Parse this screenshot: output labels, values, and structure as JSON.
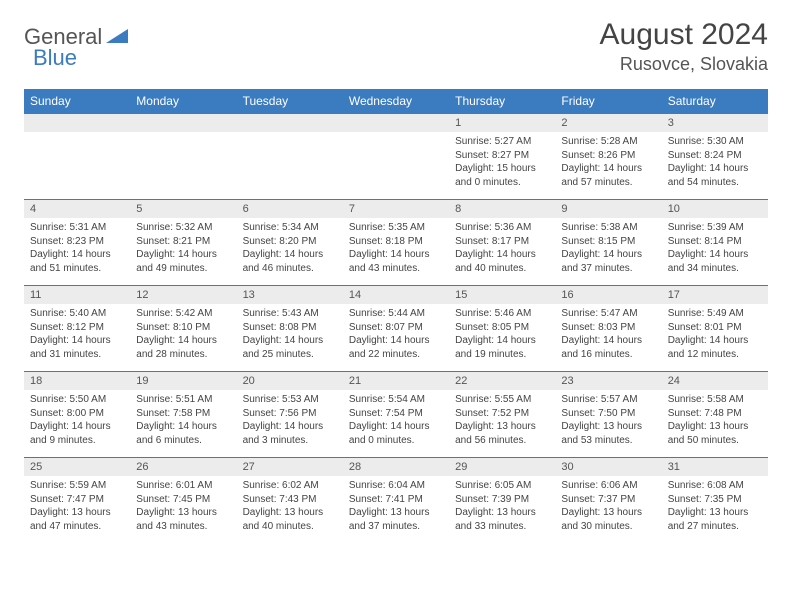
{
  "logo": {
    "general": "General",
    "blue": "Blue"
  },
  "title": "August 2024",
  "location": "Rusovce, Slovakia",
  "colors": {
    "header_bg": "#3b7bbf",
    "header_text": "#ffffff",
    "daynum_bg": "#ececec",
    "text": "#444444",
    "border": "#3b7bbf",
    "page_bg": "#ffffff"
  },
  "dayHeaders": [
    "Sunday",
    "Monday",
    "Tuesday",
    "Wednesday",
    "Thursday",
    "Friday",
    "Saturday"
  ],
  "weeks": [
    [
      null,
      null,
      null,
      null,
      {
        "n": "1",
        "sr": "5:27 AM",
        "ss": "8:27 PM",
        "dl": "15 hours and 0 minutes."
      },
      {
        "n": "2",
        "sr": "5:28 AM",
        "ss": "8:26 PM",
        "dl": "14 hours and 57 minutes."
      },
      {
        "n": "3",
        "sr": "5:30 AM",
        "ss": "8:24 PM",
        "dl": "14 hours and 54 minutes."
      }
    ],
    [
      {
        "n": "4",
        "sr": "5:31 AM",
        "ss": "8:23 PM",
        "dl": "14 hours and 51 minutes."
      },
      {
        "n": "5",
        "sr": "5:32 AM",
        "ss": "8:21 PM",
        "dl": "14 hours and 49 minutes."
      },
      {
        "n": "6",
        "sr": "5:34 AM",
        "ss": "8:20 PM",
        "dl": "14 hours and 46 minutes."
      },
      {
        "n": "7",
        "sr": "5:35 AM",
        "ss": "8:18 PM",
        "dl": "14 hours and 43 minutes."
      },
      {
        "n": "8",
        "sr": "5:36 AM",
        "ss": "8:17 PM",
        "dl": "14 hours and 40 minutes."
      },
      {
        "n": "9",
        "sr": "5:38 AM",
        "ss": "8:15 PM",
        "dl": "14 hours and 37 minutes."
      },
      {
        "n": "10",
        "sr": "5:39 AM",
        "ss": "8:14 PM",
        "dl": "14 hours and 34 minutes."
      }
    ],
    [
      {
        "n": "11",
        "sr": "5:40 AM",
        "ss": "8:12 PM",
        "dl": "14 hours and 31 minutes."
      },
      {
        "n": "12",
        "sr": "5:42 AM",
        "ss": "8:10 PM",
        "dl": "14 hours and 28 minutes."
      },
      {
        "n": "13",
        "sr": "5:43 AM",
        "ss": "8:08 PM",
        "dl": "14 hours and 25 minutes."
      },
      {
        "n": "14",
        "sr": "5:44 AM",
        "ss": "8:07 PM",
        "dl": "14 hours and 22 minutes."
      },
      {
        "n": "15",
        "sr": "5:46 AM",
        "ss": "8:05 PM",
        "dl": "14 hours and 19 minutes."
      },
      {
        "n": "16",
        "sr": "5:47 AM",
        "ss": "8:03 PM",
        "dl": "14 hours and 16 minutes."
      },
      {
        "n": "17",
        "sr": "5:49 AM",
        "ss": "8:01 PM",
        "dl": "14 hours and 12 minutes."
      }
    ],
    [
      {
        "n": "18",
        "sr": "5:50 AM",
        "ss": "8:00 PM",
        "dl": "14 hours and 9 minutes."
      },
      {
        "n": "19",
        "sr": "5:51 AM",
        "ss": "7:58 PM",
        "dl": "14 hours and 6 minutes."
      },
      {
        "n": "20",
        "sr": "5:53 AM",
        "ss": "7:56 PM",
        "dl": "14 hours and 3 minutes."
      },
      {
        "n": "21",
        "sr": "5:54 AM",
        "ss": "7:54 PM",
        "dl": "14 hours and 0 minutes."
      },
      {
        "n": "22",
        "sr": "5:55 AM",
        "ss": "7:52 PM",
        "dl": "13 hours and 56 minutes."
      },
      {
        "n": "23",
        "sr": "5:57 AM",
        "ss": "7:50 PM",
        "dl": "13 hours and 53 minutes."
      },
      {
        "n": "24",
        "sr": "5:58 AM",
        "ss": "7:48 PM",
        "dl": "13 hours and 50 minutes."
      }
    ],
    [
      {
        "n": "25",
        "sr": "5:59 AM",
        "ss": "7:47 PM",
        "dl": "13 hours and 47 minutes."
      },
      {
        "n": "26",
        "sr": "6:01 AM",
        "ss": "7:45 PM",
        "dl": "13 hours and 43 minutes."
      },
      {
        "n": "27",
        "sr": "6:02 AM",
        "ss": "7:43 PM",
        "dl": "13 hours and 40 minutes."
      },
      {
        "n": "28",
        "sr": "6:04 AM",
        "ss": "7:41 PM",
        "dl": "13 hours and 37 minutes."
      },
      {
        "n": "29",
        "sr": "6:05 AM",
        "ss": "7:39 PM",
        "dl": "13 hours and 33 minutes."
      },
      {
        "n": "30",
        "sr": "6:06 AM",
        "ss": "7:37 PM",
        "dl": "13 hours and 30 minutes."
      },
      {
        "n": "31",
        "sr": "6:08 AM",
        "ss": "7:35 PM",
        "dl": "13 hours and 27 minutes."
      }
    ]
  ],
  "labels": {
    "sunrise": "Sunrise: ",
    "sunset": "Sunset: ",
    "daylight": "Daylight: "
  }
}
